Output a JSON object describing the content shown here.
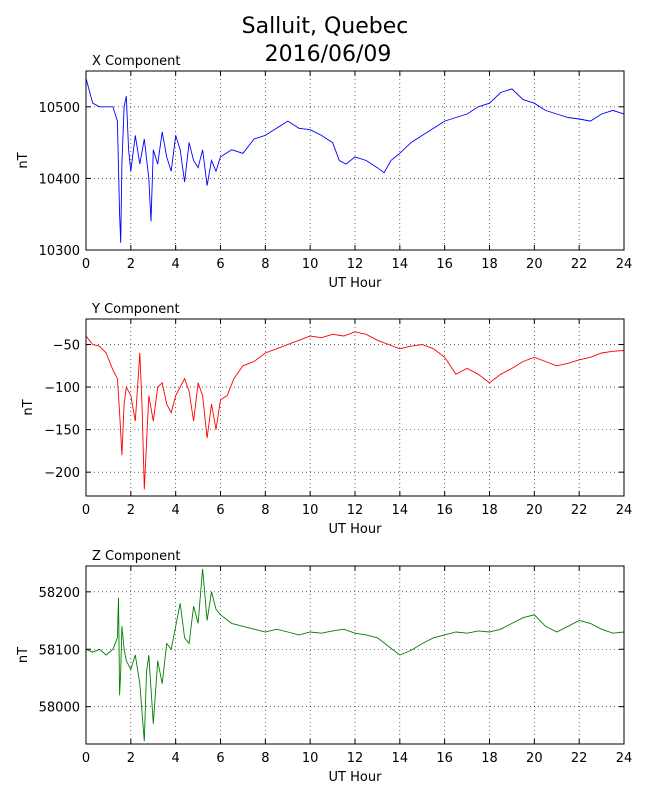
{
  "title_line1": "Salluit, Quebec",
  "title_line2": "2016/06/09",
  "chart_data": [
    {
      "type": "line",
      "panel_title": "X Component",
      "xlabel": "UT Hour",
      "ylabel": "nT",
      "xlim": [
        0,
        24
      ],
      "ylim": [
        10300,
        10550
      ],
      "xticks": [
        0,
        2,
        4,
        6,
        8,
        10,
        12,
        14,
        16,
        18,
        20,
        22,
        24
      ],
      "yticks": [
        10300,
        10400,
        10500
      ],
      "grid": true,
      "color": "#0000ff",
      "x": [
        0,
        0.3,
        0.6,
        0.9,
        1.2,
        1.4,
        1.5,
        1.55,
        1.6,
        1.7,
        1.8,
        1.9,
        2.0,
        2.2,
        2.4,
        2.6,
        2.8,
        2.9,
        3.0,
        3.2,
        3.4,
        3.6,
        3.8,
        4.0,
        4.2,
        4.4,
        4.6,
        4.8,
        5.0,
        5.2,
        5.4,
        5.6,
        5.8,
        6.0,
        6.5,
        7.0,
        7.5,
        8.0,
        8.5,
        9.0,
        9.5,
        10.0,
        10.5,
        11.0,
        11.3,
        11.6,
        12.0,
        12.5,
        13.0,
        13.3,
        13.6,
        14.0,
        14.5,
        15.0,
        15.5,
        16.0,
        16.5,
        17.0,
        17.5,
        18.0,
        18.5,
        19.0,
        19.5,
        20.0,
        20.5,
        21.0,
        21.5,
        22.0,
        22.5,
        23.0,
        23.5,
        24.0
      ],
      "values": [
        10540,
        10505,
        10500,
        10500,
        10500,
        10480,
        10350,
        10310,
        10420,
        10500,
        10515,
        10440,
        10410,
        10460,
        10420,
        10455,
        10400,
        10340,
        10440,
        10420,
        10465,
        10430,
        10410,
        10460,
        10440,
        10395,
        10450,
        10425,
        10415,
        10440,
        10390,
        10425,
        10410,
        10430,
        10440,
        10435,
        10455,
        10460,
        10470,
        10480,
        10470,
        10468,
        10460,
        10450,
        10425,
        10420,
        10430,
        10425,
        10415,
        10408,
        10425,
        10435,
        10450,
        10460,
        10470,
        10480,
        10485,
        10490,
        10500,
        10505,
        10520,
        10525,
        10510,
        10505,
        10495,
        10490,
        10485,
        10483,
        10480,
        10490,
        10495,
        10490
      ]
    },
    {
      "type": "line",
      "panel_title": "Y Component",
      "xlabel": "UT Hour",
      "ylabel": "nT",
      "xlim": [
        0,
        24
      ],
      "ylim": [
        -228,
        -20
      ],
      "xticks": [
        0,
        2,
        4,
        6,
        8,
        10,
        12,
        14,
        16,
        18,
        20,
        22,
        24
      ],
      "yticks": [
        -200,
        -150,
        -100,
        -50
      ],
      "grid": true,
      "color": "#ff0000",
      "x": [
        0,
        0.3,
        0.6,
        0.9,
        1.2,
        1.4,
        1.5,
        1.6,
        1.7,
        1.8,
        2.0,
        2.2,
        2.4,
        2.5,
        2.6,
        2.8,
        3.0,
        3.2,
        3.4,
        3.6,
        3.8,
        4.0,
        4.2,
        4.4,
        4.6,
        4.8,
        5.0,
        5.2,
        5.4,
        5.6,
        5.8,
        6.0,
        6.3,
        6.6,
        7.0,
        7.5,
        8.0,
        8.5,
        9.0,
        9.5,
        10.0,
        10.5,
        11.0,
        11.5,
        12.0,
        12.5,
        13.0,
        13.5,
        14.0,
        14.5,
        15.0,
        15.5,
        16.0,
        16.5,
        17.0,
        17.5,
        18.0,
        18.5,
        19.0,
        19.5,
        20.0,
        20.5,
        21.0,
        21.5,
        22.0,
        22.5,
        23.0,
        23.5,
        24.0
      ],
      "values": [
        -40,
        -50,
        -52,
        -60,
        -80,
        -90,
        -130,
        -180,
        -120,
        -100,
        -110,
        -140,
        -60,
        -120,
        -220,
        -110,
        -140,
        -100,
        -95,
        -120,
        -130,
        -110,
        -100,
        -90,
        -105,
        -140,
        -95,
        -110,
        -160,
        -120,
        -150,
        -115,
        -110,
        -90,
        -75,
        -70,
        -60,
        -55,
        -50,
        -45,
        -40,
        -42,
        -38,
        -40,
        -35,
        -38,
        -45,
        -50,
        -55,
        -52,
        -50,
        -55,
        -65,
        -85,
        -78,
        -85,
        -95,
        -85,
        -78,
        -70,
        -65,
        -70,
        -75,
        -72,
        -68,
        -65,
        -60,
        -58,
        -57
      ]
    },
    {
      "type": "line",
      "panel_title": "Z Component",
      "xlabel": "UT Hour",
      "ylabel": "nT",
      "xlim": [
        0,
        24
      ],
      "ylim": [
        57935,
        58245
      ],
      "xticks": [
        0,
        2,
        4,
        6,
        8,
        10,
        12,
        14,
        16,
        18,
        20,
        22,
        24
      ],
      "yticks": [
        58000,
        58100,
        58200
      ],
      "grid": true,
      "color": "#008000",
      "x": [
        0,
        0.3,
        0.6,
        0.9,
        1.2,
        1.4,
        1.45,
        1.5,
        1.55,
        1.6,
        1.7,
        1.8,
        2.0,
        2.2,
        2.4,
        2.6,
        2.7,
        2.8,
        3.0,
        3.2,
        3.4,
        3.6,
        3.8,
        4.0,
        4.2,
        4.4,
        4.6,
        4.8,
        5.0,
        5.2,
        5.4,
        5.6,
        5.8,
        6.0,
        6.5,
        7.0,
        7.5,
        8.0,
        8.5,
        9.0,
        9.5,
        10.0,
        10.5,
        11.0,
        11.5,
        12.0,
        12.5,
        13.0,
        13.5,
        14.0,
        14.5,
        15.0,
        15.5,
        16.0,
        16.5,
        17.0,
        17.5,
        18.0,
        18.5,
        19.0,
        19.5,
        20.0,
        20.5,
        21.0,
        21.5,
        22.0,
        22.5,
        23.0,
        23.5,
        24.0
      ],
      "values": [
        58100,
        58095,
        58100,
        58090,
        58100,
        58120,
        58190,
        58020,
        58060,
        58140,
        58100,
        58080,
        58065,
        58090,
        58040,
        57940,
        58060,
        58090,
        57970,
        58080,
        58040,
        58110,
        58100,
        58140,
        58180,
        58120,
        58110,
        58175,
        58145,
        58240,
        58150,
        58200,
        58170,
        58160,
        58145,
        58140,
        58135,
        58130,
        58135,
        58130,
        58125,
        58130,
        58128,
        58132,
        58135,
        58128,
        58125,
        58120,
        58105,
        58090,
        58098,
        58110,
        58120,
        58125,
        58130,
        58128,
        58132,
        58130,
        58135,
        58145,
        58155,
        58160,
        58140,
        58130,
        58140,
        58150,
        58145,
        58135,
        58128,
        58130
      ]
    }
  ]
}
